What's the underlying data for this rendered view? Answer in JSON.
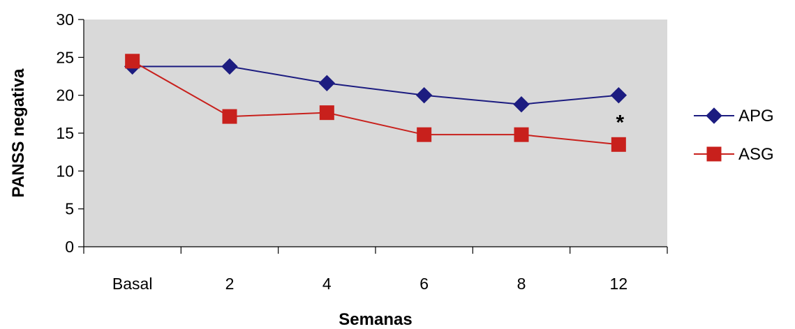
{
  "chart_data": {
    "type": "line",
    "categories": [
      "Basal",
      "2",
      "4",
      "6",
      "8",
      "12"
    ],
    "series": [
      {
        "name": "APG",
        "values": [
          23.8,
          23.8,
          21.6,
          20.0,
          18.8,
          20.0
        ],
        "color": "#1c1c80",
        "marker": "diamond"
      },
      {
        "name": "ASG",
        "values": [
          24.5,
          17.2,
          17.7,
          14.8,
          14.8,
          13.5
        ],
        "color": "#c8201c",
        "marker": "square"
      }
    ],
    "xlabel": "Semanas",
    "ylabel": "PANSS negativa",
    "ylim": [
      0,
      30
    ],
    "yticks": [
      0,
      5,
      10,
      15,
      20,
      25,
      30
    ],
    "grid": false,
    "plot_background": "#d9d9d9",
    "legend": "right",
    "annotations": [
      {
        "text": "*",
        "category": "12",
        "y": 16.8
      }
    ]
  }
}
